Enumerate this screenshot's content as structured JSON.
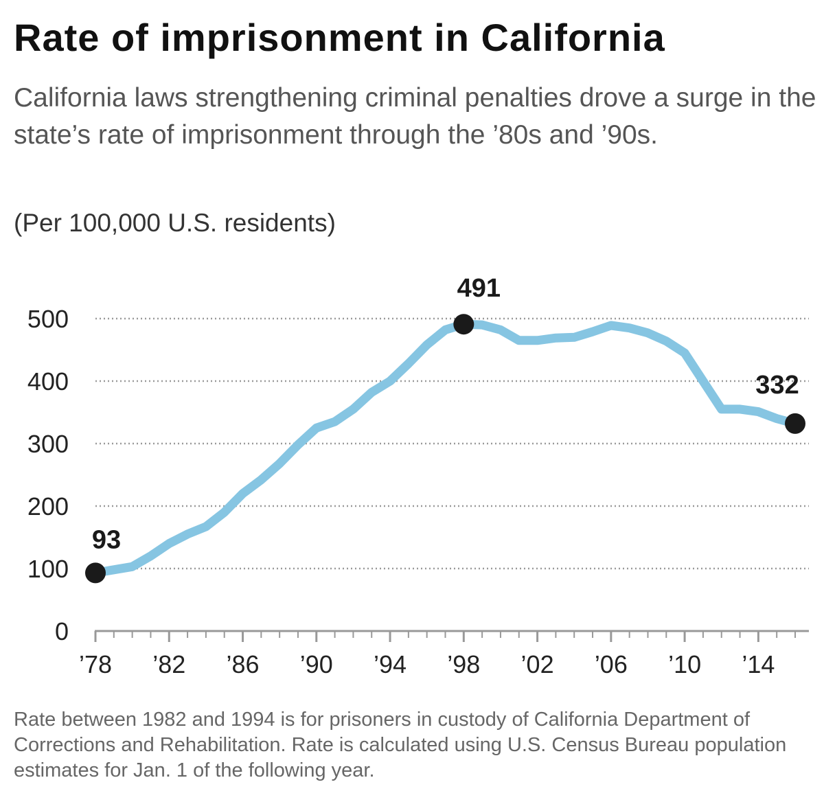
{
  "header": {
    "title": "Rate of imprisonment in California",
    "subtitle": "California laws strengthening criminal penalties drove a surge in the state’s rate of imprisonment through the ’80s and ’90s.",
    "unit_note": "(Per 100,000 U.S. residents)"
  },
  "footnote": "Rate between 1982 and 1994 is for prisoners in custody of California Department of Corrections and Rehabilitation. Rate is calculated using U.S. Census Bureau population estimates for Jan. 1 of the following year.",
  "chart_data": {
    "type": "line",
    "title": "Rate of imprisonment in California",
    "ylabel": "(Per 100,000 U.S. residents)",
    "xlabel": "",
    "xlim": [
      1978,
      2016
    ],
    "ylim": [
      0,
      500
    ],
    "grid": true,
    "yticks": [
      0,
      100,
      200,
      300,
      400,
      500
    ],
    "xticks": [
      {
        "value": 1978,
        "label": "’78"
      },
      {
        "value": 1982,
        "label": "’82"
      },
      {
        "value": 1986,
        "label": "’86"
      },
      {
        "value": 1990,
        "label": "’90"
      },
      {
        "value": 1994,
        "label": "’94"
      },
      {
        "value": 1998,
        "label": "’98"
      },
      {
        "value": 2002,
        "label": "’02"
      },
      {
        "value": 2006,
        "label": "’06"
      },
      {
        "value": 2010,
        "label": "’10"
      },
      {
        "value": 2014,
        "label": "’14"
      }
    ],
    "series": [
      {
        "name": "Rate of imprisonment",
        "color": "#86c5e2",
        "x": [
          1978,
          1979,
          1980,
          1981,
          1982,
          1983,
          1984,
          1985,
          1986,
          1987,
          1988,
          1989,
          1990,
          1991,
          1992,
          1993,
          1994,
          1995,
          1996,
          1997,
          1998,
          1999,
          2000,
          2001,
          2002,
          2003,
          2004,
          2005,
          2006,
          2007,
          2008,
          2009,
          2010,
          2011,
          2012,
          2013,
          2014,
          2015,
          2016
        ],
        "values": [
          93,
          98,
          103,
          120,
          140,
          155,
          167,
          190,
          220,
          242,
          268,
          298,
          325,
          335,
          355,
          382,
          400,
          428,
          458,
          482,
          491,
          490,
          482,
          465,
          465,
          469,
          470,
          479,
          489,
          485,
          477,
          464,
          445,
          400,
          355,
          355,
          351,
          340,
          332
        ]
      }
    ],
    "annotations": [
      {
        "x": 1978,
        "y": 93,
        "label": "93"
      },
      {
        "x": 1998,
        "y": 491,
        "label": "491"
      },
      {
        "x": 2016,
        "y": 332,
        "label": "332"
      }
    ],
    "colors": {
      "line": "#86c5e2",
      "marker": "#1a1a1a",
      "grid": "#999999",
      "axis": "#999999"
    }
  }
}
